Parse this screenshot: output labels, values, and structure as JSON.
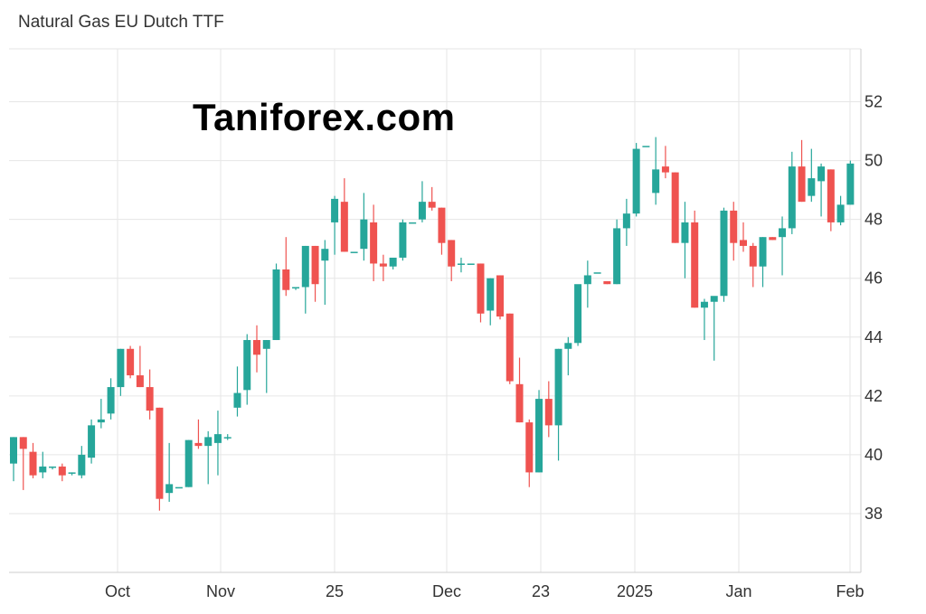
{
  "title": "Natural Gas EU Dutch TTF",
  "watermark": "Taniforex.com",
  "colors": {
    "up": "#26a69a",
    "down": "#ef5350",
    "grid": "#e6e6e6",
    "axis": "#cccccc"
  },
  "chart_data": {
    "type": "candlestick",
    "title": "Natural Gas EU Dutch TTF",
    "ylim": [
      36.0,
      53.8
    ],
    "y_ticks": [
      38,
      40,
      42,
      44,
      46,
      48,
      50,
      52
    ],
    "x_ticks": [
      "Oct",
      "Nov",
      "25",
      "Dec",
      "23",
      "2025",
      "Jan",
      "Feb"
    ],
    "grid": true,
    "candles": [
      [
        39.7,
        40.6,
        39.1,
        40.6
      ],
      [
        40.6,
        40.6,
        38.8,
        40.2
      ],
      [
        40.1,
        40.4,
        39.2,
        39.3
      ],
      [
        39.4,
        40.1,
        39.2,
        39.6
      ],
      [
        39.6,
        39.6,
        39.5,
        39.6
      ],
      [
        39.6,
        39.7,
        39.1,
        39.3
      ],
      [
        39.4,
        39.4,
        39.3,
        39.4
      ],
      [
        39.3,
        40.3,
        39.2,
        40.0
      ],
      [
        39.9,
        41.2,
        39.7,
        41.0
      ],
      [
        41.1,
        41.9,
        40.9,
        41.2
      ],
      [
        41.4,
        42.6,
        41.2,
        42.3
      ],
      [
        42.3,
        43.6,
        42.0,
        43.6
      ],
      [
        43.6,
        43.7,
        42.6,
        42.7
      ],
      [
        42.7,
        43.7,
        42.3,
        42.3
      ],
      [
        42.3,
        42.9,
        41.2,
        41.5
      ],
      [
        41.6,
        41.6,
        38.1,
        38.5
      ],
      [
        38.7,
        40.4,
        38.4,
        39.0
      ],
      [
        38.9,
        38.9,
        38.9,
        38.9
      ],
      [
        38.9,
        40.5,
        38.9,
        40.5
      ],
      [
        40.4,
        41.2,
        40.2,
        40.3
      ],
      [
        40.3,
        40.8,
        39.0,
        40.6
      ],
      [
        40.4,
        41.5,
        39.3,
        40.7
      ],
      [
        40.6,
        40.7,
        40.5,
        40.6
      ],
      [
        41.6,
        43.0,
        41.3,
        42.1
      ],
      [
        42.2,
        44.1,
        41.7,
        43.9
      ],
      [
        43.9,
        44.4,
        42.8,
        43.4
      ],
      [
        43.6,
        43.9,
        42.1,
        43.9
      ],
      [
        43.9,
        46.5,
        43.9,
        46.3
      ],
      [
        46.3,
        47.4,
        45.4,
        45.6
      ],
      [
        45.7,
        45.7,
        45.6,
        45.7
      ],
      [
        45.7,
        47.1,
        44.8,
        47.1
      ],
      [
        47.1,
        47.1,
        45.2,
        45.8
      ],
      [
        46.6,
        47.3,
        45.1,
        47.0
      ],
      [
        47.9,
        48.8,
        46.8,
        48.7
      ],
      [
        48.6,
        49.4,
        46.9,
        46.9
      ],
      [
        46.9,
        46.9,
        46.9,
        46.9
      ],
      [
        47.0,
        48.9,
        46.6,
        48.0
      ],
      [
        47.9,
        48.5,
        45.9,
        46.5
      ],
      [
        46.5,
        46.8,
        45.9,
        46.4
      ],
      [
        46.4,
        46.6,
        46.3,
        46.7
      ],
      [
        46.7,
        48.0,
        46.6,
        47.9
      ],
      [
        47.9,
        47.9,
        47.9,
        47.9
      ],
      [
        48.0,
        49.3,
        47.9,
        48.6
      ],
      [
        48.6,
        49.1,
        48.3,
        48.4
      ],
      [
        48.4,
        48.4,
        46.8,
        47.2
      ],
      [
        47.3,
        47.3,
        45.9,
        46.4
      ],
      [
        46.5,
        46.7,
        46.2,
        46.5
      ],
      [
        46.5,
        46.5,
        46.5,
        46.5
      ],
      [
        46.5,
        46.5,
        44.5,
        44.8
      ],
      [
        44.9,
        46.0,
        44.4,
        46.0
      ],
      [
        46.1,
        46.1,
        44.6,
        44.7
      ],
      [
        44.8,
        44.8,
        42.4,
        42.5
      ],
      [
        42.4,
        43.3,
        41.1,
        41.1
      ],
      [
        41.1,
        41.2,
        38.9,
        39.4
      ],
      [
        39.4,
        42.2,
        39.4,
        41.9
      ],
      [
        41.9,
        42.5,
        40.6,
        41.0
      ],
      [
        41.0,
        43.6,
        39.8,
        43.6
      ],
      [
        43.6,
        44.0,
        42.7,
        43.8
      ],
      [
        43.8,
        45.7,
        43.7,
        45.8
      ],
      [
        45.8,
        46.6,
        45.0,
        46.1
      ],
      [
        46.2,
        46.2,
        46.2,
        46.2
      ],
      [
        45.9,
        45.9,
        45.8,
        45.8
      ],
      [
        45.8,
        48.0,
        45.8,
        47.7
      ],
      [
        47.7,
        48.7,
        47.1,
        48.2
      ],
      [
        48.2,
        50.6,
        48.1,
        50.4
      ],
      [
        50.5,
        50.5,
        50.5,
        50.5
      ],
      [
        48.9,
        50.8,
        48.5,
        49.7
      ],
      [
        49.8,
        50.5,
        49.4,
        49.6
      ],
      [
        49.6,
        49.6,
        47.2,
        47.2
      ],
      [
        47.2,
        48.6,
        46.0,
        47.9
      ],
      [
        47.9,
        48.3,
        45.0,
        45.0
      ],
      [
        45.0,
        45.3,
        43.9,
        45.2
      ],
      [
        45.2,
        45.3,
        43.2,
        45.4
      ],
      [
        45.4,
        48.4,
        45.2,
        48.3
      ],
      [
        48.3,
        48.6,
        46.6,
        47.2
      ],
      [
        47.3,
        47.9,
        46.9,
        47.1
      ],
      [
        47.1,
        47.2,
        45.7,
        46.4
      ],
      [
        46.4,
        47.4,
        45.7,
        47.4
      ],
      [
        47.4,
        47.4,
        47.3,
        47.3
      ],
      [
        47.4,
        48.1,
        46.1,
        47.7
      ],
      [
        47.7,
        50.3,
        47.5,
        49.8
      ],
      [
        49.8,
        50.7,
        48.6,
        48.6
      ],
      [
        48.8,
        50.4,
        48.6,
        49.4
      ],
      [
        49.3,
        49.9,
        48.1,
        49.8
      ],
      [
        49.7,
        49.7,
        47.6,
        47.9
      ],
      [
        47.9,
        48.8,
        47.8,
        48.5
      ],
      [
        48.5,
        50.0,
        48.5,
        49.9
      ]
    ]
  }
}
